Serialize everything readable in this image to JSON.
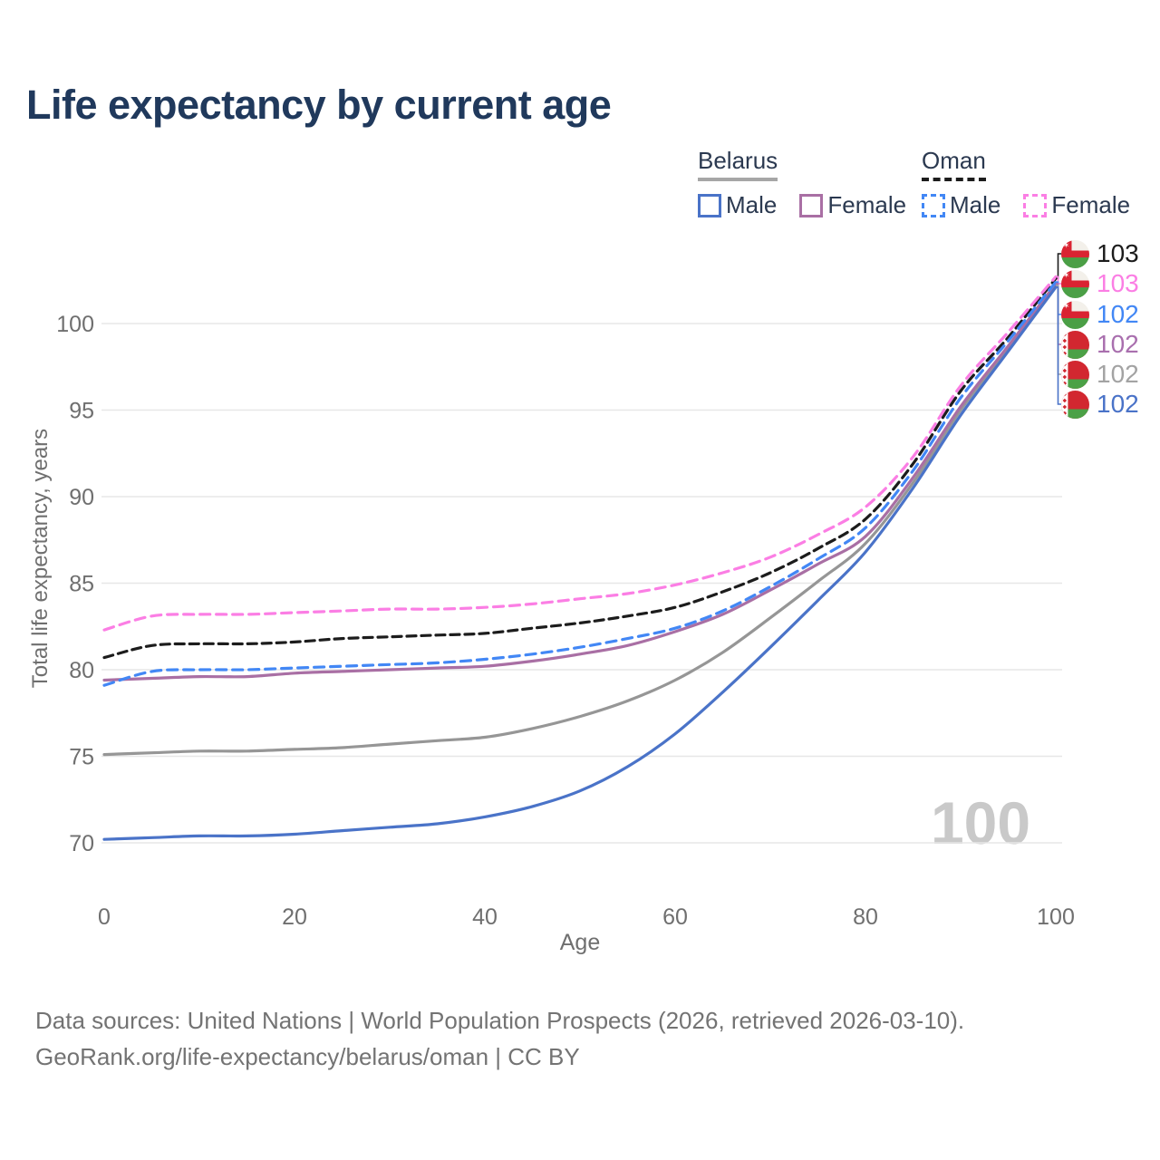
{
  "header": {
    "title": "Life expectancy by current age"
  },
  "legend": {
    "groups": [
      {
        "id": "belarus",
        "title": "Belarus",
        "line_style": "solid",
        "underline_color": "#a6a6a6",
        "items": [
          {
            "label": "Male",
            "color": "#4a73c8",
            "dashed": false
          },
          {
            "label": "Female",
            "color": "#a96fa4",
            "dashed": false
          }
        ]
      },
      {
        "id": "oman",
        "title": "Oman",
        "line_style": "dashed",
        "underline_color": "#1c1c1c",
        "items": [
          {
            "label": "Male",
            "color": "#4287f5",
            "dashed": true
          },
          {
            "label": "Female",
            "color": "#fb7ee4",
            "dashed": true
          }
        ]
      }
    ]
  },
  "chart_data": {
    "type": "line",
    "title": "Life expectancy by current age",
    "xlabel": "Age",
    "ylabel": "Total life expectancy, years",
    "watermark": "100",
    "x": [
      0,
      5,
      10,
      15,
      20,
      25,
      30,
      35,
      40,
      45,
      50,
      55,
      60,
      65,
      70,
      75,
      80,
      85,
      90,
      95,
      100
    ],
    "xticks": [
      0,
      20,
      40,
      60,
      80,
      100
    ],
    "yticks": [
      70,
      75,
      80,
      85,
      90,
      95,
      100
    ],
    "xlim": [
      0,
      100
    ],
    "ylim": [
      68.5,
      104
    ],
    "grid": "horizontal",
    "legend_position": "top-right",
    "series": [
      {
        "key": "belarus_total",
        "name": "Belarus — Total",
        "color": "#969696",
        "dash": null,
        "values": [
          75.1,
          75.2,
          75.3,
          75.3,
          75.4,
          75.5,
          75.7,
          75.9,
          76.1,
          76.6,
          77.3,
          78.2,
          79.4,
          81.0,
          83.0,
          85.1,
          87.3,
          90.8,
          95.0,
          98.6,
          102.2
        ]
      },
      {
        "key": "belarus_female",
        "name": "Belarus — Female",
        "color": "#a96fa4",
        "dash": null,
        "values": [
          79.4,
          79.5,
          79.6,
          79.6,
          79.8,
          79.9,
          80.0,
          80.1,
          80.2,
          80.5,
          80.9,
          81.4,
          82.2,
          83.2,
          84.6,
          86.1,
          87.7,
          91.1,
          95.2,
          98.7,
          102.3
        ]
      },
      {
        "key": "belarus_male",
        "name": "Belarus — Male",
        "color": "#4a73c8",
        "dash": null,
        "values": [
          70.2,
          70.3,
          70.4,
          70.4,
          70.5,
          70.7,
          70.9,
          71.1,
          71.5,
          72.1,
          73.0,
          74.4,
          76.3,
          78.7,
          81.3,
          84.0,
          86.8,
          90.5,
          94.7,
          98.4,
          102.1
        ]
      },
      {
        "key": "oman_total",
        "name": "Oman — Total",
        "color": "#1c1c1c",
        "dash": "10 6",
        "values": [
          80.7,
          81.4,
          81.5,
          81.5,
          81.6,
          81.8,
          81.9,
          82.0,
          82.1,
          82.4,
          82.7,
          83.1,
          83.6,
          84.5,
          85.6,
          87.0,
          88.7,
          91.9,
          96.1,
          99.2,
          102.6
        ]
      },
      {
        "key": "oman_male",
        "name": "Oman — Male",
        "color": "#4287f5",
        "dash": "11 7",
        "values": [
          79.1,
          79.9,
          80.0,
          80.0,
          80.1,
          80.2,
          80.3,
          80.4,
          80.6,
          80.9,
          81.3,
          81.8,
          82.4,
          83.4,
          84.8,
          86.4,
          88.2,
          91.5,
          95.7,
          99.0,
          102.4
        ]
      },
      {
        "key": "oman_female",
        "name": "Oman — Female",
        "color": "#fb7ee4",
        "dash": "11 7",
        "values": [
          82.3,
          83.1,
          83.2,
          83.2,
          83.3,
          83.4,
          83.5,
          83.5,
          83.6,
          83.8,
          84.1,
          84.4,
          84.9,
          85.6,
          86.5,
          87.8,
          89.4,
          92.3,
          96.4,
          99.5,
          102.7
        ]
      }
    ],
    "end_labels": [
      {
        "series": "oman_total",
        "value": "103",
        "color": "#1c1c1c",
        "flag": "oman"
      },
      {
        "series": "oman_female",
        "value": "103",
        "color": "#fb7ee4",
        "flag": "oman"
      },
      {
        "series": "oman_male",
        "value": "102",
        "color": "#4287f5",
        "flag": "oman"
      },
      {
        "series": "belarus_female",
        "value": "102",
        "color": "#a96fae",
        "flag": "belarus"
      },
      {
        "series": "belarus_total",
        "value": "102",
        "color": "#a3a3a3",
        "flag": "belarus"
      },
      {
        "series": "belarus_male",
        "value": "102",
        "color": "#4a73c8",
        "flag": "belarus"
      }
    ]
  },
  "footer": {
    "line1": "Data sources: United Nations | World Population Prospects (2026, retrieved 2026-03-10).",
    "line2": "GeoRank.org/life-expectancy/belarus/oman | CC BY"
  }
}
